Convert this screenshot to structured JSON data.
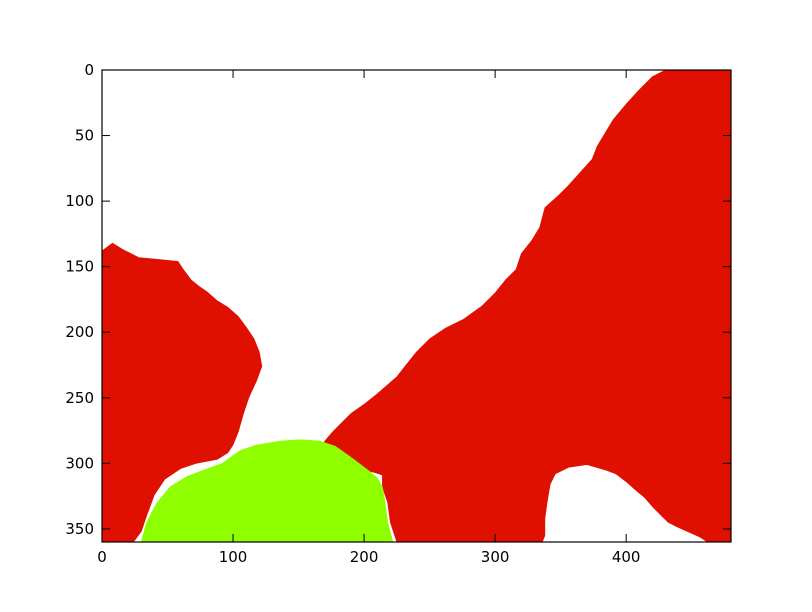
{
  "chart_data": {
    "type": "heatmap",
    "title": "",
    "xlabel": "",
    "ylabel": "",
    "xlim": [
      0,
      480
    ],
    "ylim": [
      360,
      0
    ],
    "x_ticks": [
      0,
      100,
      200,
      300,
      400
    ],
    "y_ticks": [
      0,
      50,
      100,
      150,
      200,
      250,
      300,
      350
    ],
    "y_axis_inverted": true,
    "grid": false,
    "legend": "none",
    "classes": [
      {
        "color": "#ffffff"
      },
      {
        "color": "#e01000"
      },
      {
        "color": "#8fff00"
      }
    ],
    "regions": [
      {
        "class_color": "#e01000",
        "outline": [
          [
            0,
            360
          ],
          [
            0,
            138
          ],
          [
            8,
            132
          ],
          [
            16,
            137
          ],
          [
            28,
            143
          ],
          [
            48,
            145
          ],
          [
            58,
            146
          ],
          [
            62,
            152
          ],
          [
            68,
            160
          ],
          [
            74,
            165
          ],
          [
            80,
            169
          ],
          [
            88,
            176
          ],
          [
            96,
            181
          ],
          [
            104,
            188
          ],
          [
            110,
            196
          ],
          [
            116,
            205
          ],
          [
            120,
            215
          ],
          [
            122,
            226
          ],
          [
            118,
            237
          ],
          [
            112,
            250
          ],
          [
            108,
            262
          ],
          [
            104,
            276
          ],
          [
            100,
            286
          ],
          [
            96,
            292
          ],
          [
            88,
            297
          ],
          [
            72,
            300
          ],
          [
            60,
            304
          ],
          [
            48,
            312
          ],
          [
            40,
            324
          ],
          [
            34,
            340
          ],
          [
            30,
            352
          ],
          [
            24,
            360
          ]
        ]
      },
      {
        "class_color": "#e01000",
        "outline": [
          [
            225,
            360
          ],
          [
            220,
            345
          ],
          [
            218,
            330
          ],
          [
            214,
            318
          ],
          [
            214,
            309
          ],
          [
            208,
            307
          ],
          [
            194,
            304
          ],
          [
            184,
            301
          ],
          [
            174,
            296
          ],
          [
            168,
            288
          ],
          [
            170,
            283
          ],
          [
            176,
            276
          ],
          [
            182,
            270
          ],
          [
            190,
            262
          ],
          [
            200,
            255
          ],
          [
            210,
            247
          ],
          [
            218,
            240
          ],
          [
            225,
            234
          ],
          [
            232,
            225
          ],
          [
            240,
            215
          ],
          [
            250,
            205
          ],
          [
            262,
            197
          ],
          [
            276,
            190
          ],
          [
            290,
            180
          ],
          [
            300,
            170
          ],
          [
            308,
            160
          ],
          [
            316,
            152
          ],
          [
            320,
            140
          ],
          [
            328,
            130
          ],
          [
            334,
            120
          ],
          [
            338,
            105
          ],
          [
            348,
            96
          ],
          [
            356,
            88
          ],
          [
            365,
            78
          ],
          [
            374,
            68
          ],
          [
            378,
            58
          ],
          [
            384,
            48
          ],
          [
            390,
            38
          ],
          [
            400,
            26
          ],
          [
            410,
            15
          ],
          [
            420,
            5
          ],
          [
            430,
            0
          ],
          [
            480,
            0
          ],
          [
            480,
            360
          ],
          [
            462,
            360
          ],
          [
            456,
            356
          ],
          [
            449,
            353
          ],
          [
            438,
            348
          ],
          [
            432,
            345
          ],
          [
            427,
            340
          ],
          [
            420,
            333
          ],
          [
            414,
            326
          ],
          [
            408,
            321
          ],
          [
            400,
            314
          ],
          [
            392,
            308
          ],
          [
            384,
            305
          ],
          [
            370,
            301
          ],
          [
            356,
            303
          ],
          [
            346,
            308
          ],
          [
            342,
            316
          ],
          [
            340,
            328
          ],
          [
            338,
            342
          ],
          [
            338,
            355
          ],
          [
            336,
            360
          ]
        ]
      },
      {
        "class_color": "#8fff00",
        "outline": [
          [
            30,
            360
          ],
          [
            34,
            345
          ],
          [
            42,
            330
          ],
          [
            52,
            318
          ],
          [
            65,
            310
          ],
          [
            78,
            305
          ],
          [
            92,
            300
          ],
          [
            100,
            294
          ],
          [
            106,
            290
          ],
          [
            118,
            286
          ],
          [
            136,
            283
          ],
          [
            152,
            282
          ],
          [
            166,
            283
          ],
          [
            178,
            287
          ],
          [
            188,
            294
          ],
          [
            196,
            300
          ],
          [
            204,
            306
          ],
          [
            210,
            311
          ],
          [
            214,
            318
          ],
          [
            216,
            330
          ],
          [
            218,
            345
          ],
          [
            222,
            360
          ]
        ]
      }
    ]
  }
}
